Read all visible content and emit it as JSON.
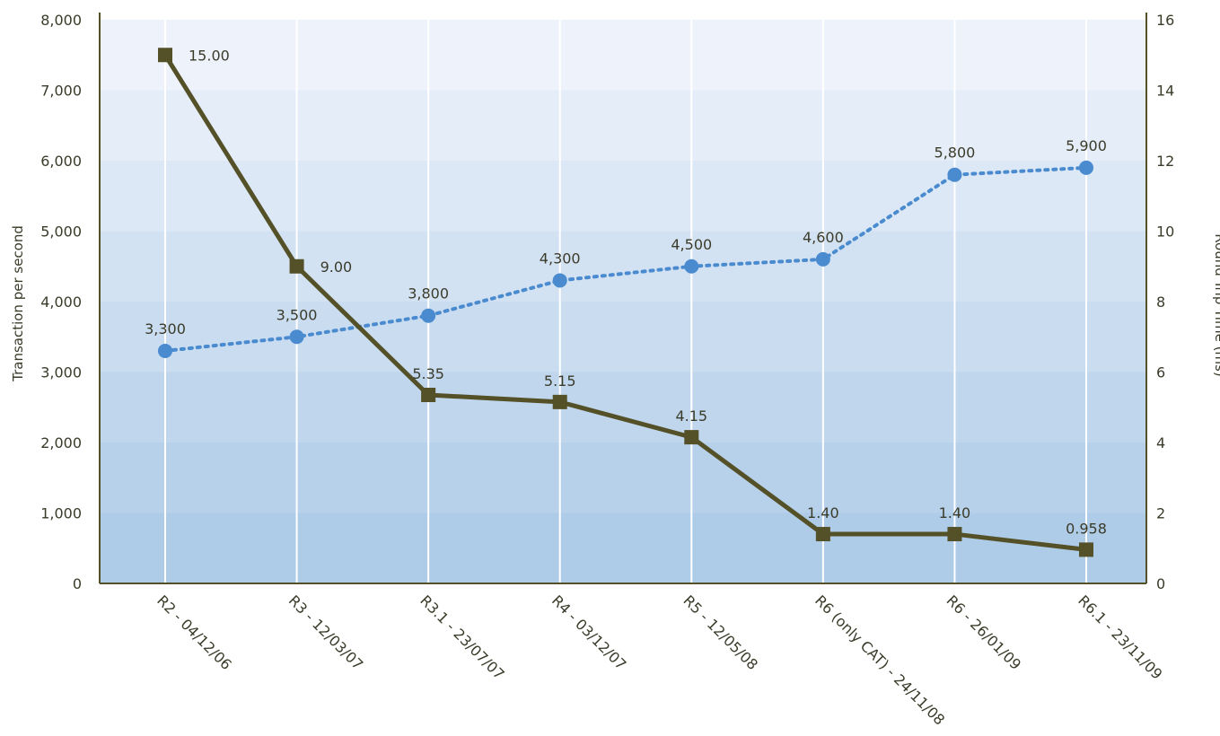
{
  "chart_data": {
    "type": "line",
    "categories": [
      "R2 - 04/12/06",
      "R3 - 12/03/07",
      "R3.1 - 23/07/07",
      "R4 - 03/12/07",
      "R5 - 12/05/08",
      "R6 (only CAT) - 24/11/08",
      "R6 - 26/01/09",
      "R6.1 - 23/11/09"
    ],
    "ylabel": "Transaction per second",
    "y2label": "Round Trip Time (ms)",
    "ylim": [
      0,
      8000
    ],
    "y2lim": [
      0,
      16
    ],
    "yticks": [
      "0",
      "1,000",
      "2,000",
      "3,000",
      "4,000",
      "5,000",
      "6,000",
      "7,000",
      "8,000"
    ],
    "y2ticks": [
      "0",
      "2",
      "4",
      "6",
      "8",
      "10",
      "12",
      "14",
      "16"
    ],
    "grid": "vertical",
    "series": [
      {
        "axis": "left",
        "style": "dotted",
        "marker": "circle",
        "color": "#4a8bd0",
        "values": [
          3300,
          3500,
          3800,
          4300,
          4500,
          4600,
          5800,
          5900
        ],
        "labels": [
          "3,300",
          "3,500",
          "3,800",
          "4,300",
          "4,500",
          "4,600",
          "5,800",
          "5,900"
        ]
      },
      {
        "axis": "right",
        "style": "solid",
        "marker": "square",
        "color": "#545028",
        "values": [
          15.0,
          9.0,
          5.35,
          5.15,
          4.15,
          1.4,
          1.4,
          0.958
        ],
        "labels": [
          "15.00",
          "9.00",
          "5.35",
          "5.15",
          "4.15",
          "1.40",
          "1.40",
          "0.958"
        ]
      }
    ],
    "colors": {
      "axis": "#545028",
      "grid": "#ffffff",
      "band_top": "#eef3fb",
      "band_bottom": "#aecbe7"
    }
  }
}
